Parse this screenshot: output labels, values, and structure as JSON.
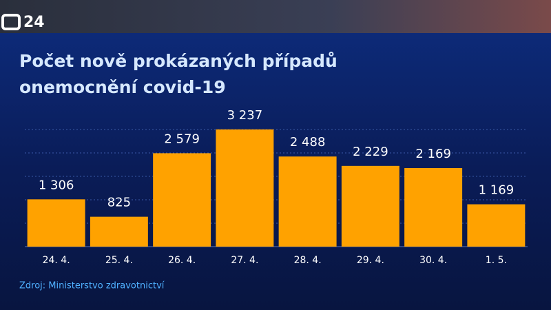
{
  "chart_data": {
    "type": "bar",
    "channel": "24",
    "title": "Počet nově prokázaných případů onemocnění covid-19",
    "categories": [
      "24. 4.",
      "25. 4.",
      "26. 4.",
      "27. 4.",
      "28. 4.",
      "29. 4.",
      "30. 4.",
      "1. 5."
    ],
    "values": [
      1306,
      825,
      2579,
      3237,
      2488,
      2229,
      2169,
      1169
    ],
    "value_labels": [
      "1 306",
      "825",
      "2 579",
      "3 237",
      "2 488",
      "2 229",
      "2 169",
      "1 169"
    ],
    "color": "#ffa200",
    "ylim": [
      0,
      3500
    ],
    "source": "Zdroj: Ministerstvo zdravotnictví"
  }
}
